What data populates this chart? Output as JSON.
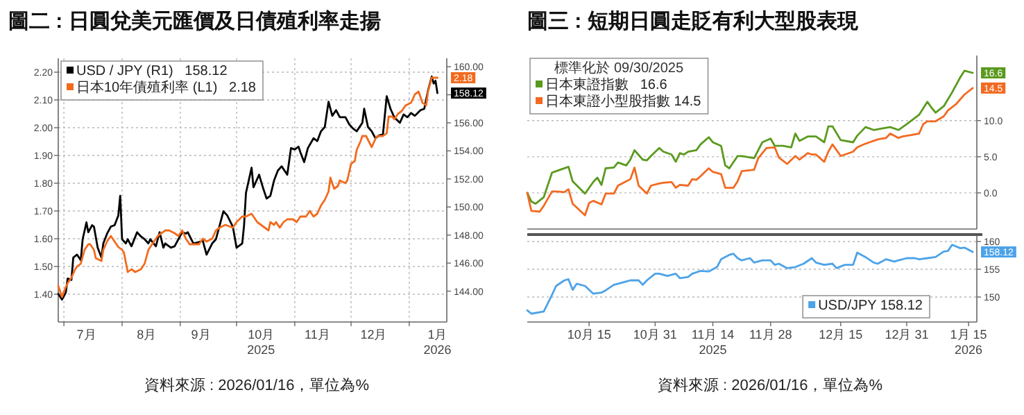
{
  "chart_data": [
    {
      "type": "line",
      "title": "圖二 : 日圓兌美元匯價及日債殖利率走揚",
      "legend": "top left",
      "grid": true,
      "xlim": [
        "2025-06-28",
        "2026-01-21"
      ],
      "xticks": [
        {
          "value": "2025-07-01",
          "label": null
        },
        {
          "value": "2025-08-01",
          "label": null
        },
        {
          "value": "2025-09-01",
          "label": null
        },
        {
          "value": "2025-10-01",
          "label": null
        },
        {
          "value": "2025-11-01",
          "label": null
        },
        {
          "value": "2025-12-01",
          "label": null
        },
        {
          "value": "2026-01-01",
          "label": null
        },
        {
          "value": "2025-07-13",
          "label": "7月"
        },
        {
          "value": "2025-08-14",
          "label": "8月"
        },
        {
          "value": "2025-09-12",
          "label": "9月"
        },
        {
          "value": "2025-10-14",
          "label": "10月\n2025"
        },
        {
          "value": "2025-11-13",
          "label": "11月"
        },
        {
          "value": "2025-12-13",
          "label": "12月"
        },
        {
          "value": "2026-01-16",
          "label": "1月\n2026"
        }
      ],
      "ylim": [
        1.3,
        2.25
      ],
      "yticks": [
        {
          "value": 1.4,
          "label": "1.40"
        },
        {
          "value": 1.5,
          "label": "1.50"
        },
        {
          "value": 1.6,
          "label": "1.60"
        },
        {
          "value": 1.7,
          "label": "1.70"
        },
        {
          "value": 1.8,
          "label": "1.80"
        },
        {
          "value": 1.9,
          "label": "1.90"
        },
        {
          "value": 2.0,
          "label": "2.00"
        },
        {
          "value": 2.1,
          "label": "2.10"
        },
        {
          "value": 2.2,
          "label": "2.20"
        }
      ],
      "y2lim": [
        141.8,
        160.6
      ],
      "y2ticks": [
        {
          "value": 144,
          "label": "144.00"
        },
        {
          "value": 146,
          "label": "146.00"
        },
        {
          "value": 148,
          "label": "148.00"
        },
        {
          "value": 150,
          "label": "150.00"
        },
        {
          "value": 152,
          "label": "152.00"
        },
        {
          "value": 154,
          "label": "154.00"
        },
        {
          "value": 156,
          "label": "156.00"
        },
        {
          "value": 158,
          "label": null
        },
        {
          "value": 160,
          "label": "160.00"
        }
      ],
      "series": [
        {
          "name": "USD / JPY (R1)   158.12",
          "color": "#000000",
          "axis": "y2",
          "x": [
            "2025-06-28",
            "2025-06-30",
            "2025-07-02",
            "2025-07-03",
            "2025-07-05",
            "2025-07-06",
            "2025-07-08",
            "2025-07-10",
            "2025-07-11",
            "2025-07-13",
            "2025-07-14",
            "2025-07-16",
            "2025-07-17",
            "2025-07-19",
            "2025-07-21",
            "2025-07-22",
            "2025-07-24",
            "2025-07-26",
            "2025-07-28",
            "2025-07-30",
            "2025-07-31",
            "2025-08-01",
            "2025-08-03",
            "2025-08-04",
            "2025-08-06",
            "2025-08-09",
            "2025-08-11",
            "2025-08-13",
            "2025-08-15",
            "2025-08-16",
            "2025-08-19",
            "2025-08-21",
            "2025-08-23",
            "2025-08-24",
            "2025-08-27",
            "2025-08-29",
            "2025-08-31",
            "2025-09-02",
            "2025-09-04",
            "2025-09-05",
            "2025-09-08",
            "2025-09-11",
            "2025-09-13",
            "2025-09-15",
            "2025-09-18",
            "2025-09-20",
            "2025-09-22",
            "2025-09-24",
            "2025-09-26",
            "2025-09-29",
            "2025-10-01",
            "2025-10-04",
            "2025-10-05",
            "2025-10-06",
            "2025-10-09",
            "2025-10-10",
            "2025-10-13",
            "2025-10-15",
            "2025-10-17",
            "2025-10-19",
            "2025-10-21",
            "2025-10-23",
            "2025-10-25",
            "2025-10-28",
            "2025-10-30",
            "2025-11-01",
            "2025-11-03",
            "2025-11-04",
            "2025-11-06",
            "2025-11-08",
            "2025-11-11",
            "2025-11-13",
            "2025-11-15",
            "2025-11-17",
            "2025-11-19",
            "2025-11-21",
            "2025-11-23",
            "2025-11-25",
            "2025-11-28",
            "2025-11-30",
            "2025-12-02",
            "2025-12-04",
            "2025-12-07",
            "2025-12-08",
            "2025-12-10",
            "2025-12-12",
            "2025-12-14",
            "2025-12-16",
            "2025-12-18",
            "2025-12-20",
            "2025-12-22",
            "2025-12-24",
            "2025-12-27",
            "2025-12-29",
            "2025-12-31",
            "2026-01-02",
            "2026-01-04",
            "2026-01-07",
            "2026-01-09",
            "2026-01-11",
            "2026-01-13",
            "2026-01-14",
            "2026-01-15",
            "2026-01-16"
          ],
          "values": [
            143.8,
            143.4,
            143.9,
            144.9,
            144.8,
            146.4,
            146.6,
            146.2,
            147.7,
            148.9,
            148.2,
            148.7,
            148.6,
            147.1,
            146.4,
            147.4,
            148.1,
            148.6,
            148.7,
            149.4,
            150.8,
            147.7,
            147.4,
            147.7,
            147.2,
            148.2,
            147.9,
            147.7,
            147.4,
            147.7,
            147.2,
            148.2,
            147.1,
            147.4,
            147.1,
            147.2,
            147.7,
            148.2,
            148.1,
            148.2,
            147.4,
            147.5,
            147.6,
            146.6,
            147.4,
            147.7,
            148.7,
            149.7,
            149.4,
            148.6,
            147.1,
            147.4,
            148.7,
            151.0,
            152.8,
            151.4,
            152.3,
            151.4,
            150.6,
            150.8,
            151.9,
            152.6,
            152.9,
            152.3,
            154.2,
            154.1,
            154.3,
            153.9,
            153.2,
            154.2,
            154.9,
            154.7,
            155.4,
            155.7,
            157.5,
            156.5,
            156.9,
            156.4,
            156.4,
            155.9,
            155.6,
            155.4,
            156.0,
            157.0,
            155.7,
            155.4,
            154.9,
            155.1,
            155.2,
            157.9,
            157.0,
            156.4,
            156.0,
            156.6,
            156.4,
            156.7,
            156.5,
            156.9,
            157.0,
            158.3,
            159.3,
            158.8,
            159.0,
            158.12
          ],
          "value_labels": [
            null,
            null,
            null,
            null,
            null,
            null,
            null,
            null,
            null,
            null,
            null,
            null,
            null,
            null,
            null,
            null,
            null,
            null,
            null,
            null,
            null,
            null,
            null,
            null,
            null,
            null,
            null,
            null,
            null,
            null,
            null,
            null,
            null,
            null,
            null,
            null,
            null,
            null,
            null,
            null,
            null,
            null,
            null,
            null,
            null,
            null,
            null,
            null,
            null,
            null,
            null,
            null,
            null,
            null,
            null,
            null,
            null,
            null,
            null,
            null,
            null,
            null,
            null,
            null,
            null,
            null,
            null,
            null,
            null,
            null,
            null,
            null,
            null,
            null,
            null,
            null,
            null,
            null,
            null,
            null,
            null,
            null,
            null,
            null,
            null,
            null,
            null,
            null,
            null,
            null,
            null,
            null,
            null,
            null,
            null,
            null,
            null,
            null,
            null,
            null,
            null,
            null,
            null,
            "158.12"
          ]
        },
        {
          "name": "日本10年債殖利率 (L1)   2.18",
          "color": "#f26b1d",
          "x": [
            "2025-06-28",
            "2025-06-30",
            "2025-07-01",
            "2025-07-03",
            "2025-07-05",
            "2025-07-07",
            "2025-07-08",
            "2025-07-10",
            "2025-07-12",
            "2025-07-14",
            "2025-07-15",
            "2025-07-17",
            "2025-07-18",
            "2025-07-21",
            "2025-07-22",
            "2025-07-24",
            "2025-07-26",
            "2025-07-28",
            "2025-07-30",
            "2025-08-01",
            "2025-08-02",
            "2025-08-04",
            "2025-08-06",
            "2025-08-08",
            "2025-08-11",
            "2025-08-13",
            "2025-08-15",
            "2025-08-17",
            "2025-08-20",
            "2025-08-22",
            "2025-08-24",
            "2025-08-26",
            "2025-08-29",
            "2025-08-31",
            "2025-09-02",
            "2025-09-04",
            "2025-09-06",
            "2025-09-09",
            "2025-09-11",
            "2025-09-13",
            "2025-09-15",
            "2025-09-18",
            "2025-09-20",
            "2025-09-22",
            "2025-09-25",
            "2025-09-29",
            "2025-10-01",
            "2025-10-04",
            "2025-10-06",
            "2025-10-09",
            "2025-10-10",
            "2025-10-12",
            "2025-10-14",
            "2025-10-18",
            "2025-10-19",
            "2025-10-21",
            "2025-10-22",
            "2025-10-24",
            "2025-10-26",
            "2025-10-28",
            "2025-10-31",
            "2025-11-02",
            "2025-11-04",
            "2025-11-07",
            "2025-11-09",
            "2025-11-11",
            "2025-11-13",
            "2025-11-15",
            "2025-11-17",
            "2025-11-19",
            "2025-11-20",
            "2025-11-22",
            "2025-11-24",
            "2025-11-25",
            "2025-11-28",
            "2025-11-29",
            "2025-12-01",
            "2025-12-03",
            "2025-12-04",
            "2025-12-06",
            "2025-12-07",
            "2025-12-09",
            "2025-12-12",
            "2025-12-14",
            "2025-12-15",
            "2025-12-18",
            "2025-12-20",
            "2025-12-21",
            "2025-12-23",
            "2025-12-24",
            "2025-12-26",
            "2025-12-28",
            "2025-12-30",
            "2026-01-02",
            "2026-01-04",
            "2026-01-06",
            "2026-01-08",
            "2026-01-10",
            "2026-01-11",
            "2026-01-13",
            "2026-01-14",
            "2026-01-15",
            "2026-01-16"
          ],
          "values": [
            1.43,
            1.39,
            1.41,
            1.44,
            1.46,
            1.49,
            1.5,
            1.51,
            1.56,
            1.58,
            1.58,
            1.56,
            1.53,
            1.52,
            1.56,
            1.59,
            1.61,
            1.59,
            1.57,
            1.56,
            1.55,
            1.48,
            1.49,
            1.48,
            1.49,
            1.51,
            1.56,
            1.58,
            1.61,
            1.62,
            1.63,
            1.63,
            1.62,
            1.61,
            1.63,
            1.6,
            1.58,
            1.58,
            1.58,
            1.6,
            1.59,
            1.6,
            1.63,
            1.64,
            1.65,
            1.64,
            1.66,
            1.68,
            1.68,
            1.69,
            1.68,
            1.66,
            1.65,
            1.63,
            1.66,
            1.65,
            1.66,
            1.64,
            1.66,
            1.67,
            1.67,
            1.66,
            1.68,
            1.68,
            1.7,
            1.68,
            1.69,
            1.72,
            1.74,
            1.77,
            1.82,
            1.78,
            1.79,
            1.81,
            1.8,
            1.81,
            1.87,
            1.88,
            1.92,
            1.95,
            1.97,
            1.97,
            1.93,
            1.96,
            1.97,
            1.97,
            1.98,
            2.04,
            2.04,
            2.03,
            2.05,
            2.06,
            2.08,
            2.09,
            2.12,
            2.13,
            2.09,
            2.08,
            2.13,
            2.18,
            2.18,
            2.18,
            2.18
          ],
          "value_labels": [
            null,
            null,
            null,
            null,
            null,
            null,
            null,
            null,
            null,
            null,
            null,
            null,
            null,
            null,
            null,
            null,
            null,
            null,
            null,
            null,
            null,
            null,
            null,
            null,
            null,
            null,
            null,
            null,
            null,
            null,
            null,
            null,
            null,
            null,
            null,
            null,
            null,
            null,
            null,
            null,
            null,
            null,
            null,
            null,
            null,
            null,
            null,
            null,
            null,
            null,
            null,
            null,
            null,
            null,
            null,
            null,
            null,
            null,
            null,
            null,
            null,
            null,
            null,
            null,
            null,
            null,
            null,
            null,
            null,
            null,
            null,
            null,
            null,
            null,
            null,
            null,
            null,
            null,
            null,
            null,
            null,
            null,
            null,
            null,
            null,
            null,
            null,
            null,
            null,
            null,
            null,
            null,
            null,
            null,
            null,
            null,
            null,
            null,
            null,
            null,
            null,
            null,
            "2.18"
          ]
        }
      ],
      "annotations": [
        "資料來源 : 2026/01/16，單位為%"
      ]
    },
    {
      "type": "line",
      "title": "圖三 : 短期日圓走貶有利大型股表現",
      "legend": "top left",
      "legend_title": "標準化於 09/30/2025",
      "grid": "y",
      "tick_labels": "y",
      "xlim": [
        "2025-09-30",
        "2026-01-17"
      ],
      "ylim": [
        -5,
        19
      ],
      "yticks": [
        {
          "value": 0,
          "label": "0.0"
        },
        {
          "value": 5,
          "label": "5.0"
        },
        {
          "value": 10,
          "label": "10.0"
        }
      ],
      "series": [
        {
          "name": "日本東證指數   16.6",
          "color": "#5a9a1e",
          "x": [
            "2025-09-30",
            "2025-10-01",
            "2025-10-02",
            "2025-10-04",
            "2025-10-06",
            "2025-10-07",
            "2025-10-10",
            "2025-10-11",
            "2025-10-14",
            "2025-10-16",
            "2025-10-17",
            "2025-10-18",
            "2025-10-19",
            "2025-10-21",
            "2025-10-22",
            "2025-10-24",
            "2025-10-25",
            "2025-10-26",
            "2025-10-28",
            "2025-10-29",
            "2025-10-30",
            "2025-11-01",
            "2025-11-02",
            "2025-11-04",
            "2025-11-05",
            "2025-11-06",
            "2025-11-07",
            "2025-11-08",
            "2025-11-10",
            "2025-11-11",
            "2025-11-13",
            "2025-11-14",
            "2025-11-16",
            "2025-11-17",
            "2025-11-18",
            "2025-11-20",
            "2025-11-21",
            "2025-11-24",
            "2025-11-26",
            "2025-11-28",
            "2025-11-29",
            "2025-12-01",
            "2025-12-03",
            "2025-12-04",
            "2025-12-05",
            "2025-12-07",
            "2025-12-09",
            "2025-12-11",
            "2025-12-12",
            "2025-12-13",
            "2025-12-15",
            "2025-12-18",
            "2025-12-19",
            "2025-12-21",
            "2025-12-23",
            "2025-12-25",
            "2025-12-27",
            "2025-12-29",
            "2025-12-31",
            "2026-01-03",
            "2026-01-05",
            "2026-01-06",
            "2026-01-07",
            "2026-01-09",
            "2026-01-11",
            "2026-01-13",
            "2026-01-14",
            "2026-01-16"
          ],
          "values": [
            0.0,
            -1.2,
            -1.5,
            -0.6,
            2.8,
            3.0,
            3.6,
            1.6,
            -0.1,
            1.5,
            2.1,
            1.1,
            3.4,
            3.5,
            4.2,
            3.8,
            4.6,
            5.9,
            4.6,
            4.5,
            5.1,
            6.2,
            5.7,
            5.3,
            4.3,
            5.5,
            5.3,
            5.7,
            5.9,
            6.7,
            7.7,
            7.0,
            6.5,
            3.8,
            3.4,
            5.1,
            5.1,
            4.8,
            7.0,
            7.5,
            6.5,
            6.5,
            6.3,
            8.2,
            7.2,
            7.8,
            7.8,
            7.0,
            9.2,
            9.2,
            7.3,
            7.0,
            7.9,
            9.1,
            8.7,
            8.9,
            9.1,
            8.7,
            9.5,
            10.8,
            12.6,
            11.8,
            11.1,
            12.0,
            13.9,
            16.0,
            16.9,
            16.6
          ],
          "value_labels": [
            null,
            null,
            null,
            null,
            null,
            null,
            null,
            null,
            null,
            null,
            null,
            null,
            null,
            null,
            null,
            null,
            null,
            null,
            null,
            null,
            null,
            null,
            null,
            null,
            null,
            null,
            null,
            null,
            null,
            null,
            null,
            null,
            null,
            null,
            null,
            null,
            null,
            null,
            null,
            null,
            null,
            null,
            null,
            null,
            null,
            null,
            null,
            null,
            null,
            null,
            null,
            null,
            null,
            null,
            null,
            null,
            null,
            null,
            null,
            null,
            null,
            null,
            null,
            null,
            null,
            null,
            null,
            "16.6"
          ]
        },
        {
          "name": "日本東證小型股指數 14.5",
          "color": "#f26a21",
          "x": [
            "2025-09-30",
            "2025-10-01",
            "2025-10-03",
            "2025-10-04",
            "2025-10-06",
            "2025-10-07",
            "2025-10-09",
            "2025-10-10",
            "2025-10-11",
            "2025-10-14",
            "2025-10-15",
            "2025-10-16",
            "2025-10-18",
            "2025-10-19",
            "2025-10-21",
            "2025-10-22",
            "2025-10-24",
            "2025-10-25",
            "2025-10-26",
            "2025-10-27",
            "2025-10-29",
            "2025-10-30",
            "2025-11-01",
            "2025-11-02",
            "2025-11-04",
            "2025-11-05",
            "2025-11-06",
            "2025-11-08",
            "2025-11-09",
            "2025-11-10",
            "2025-11-11",
            "2025-11-13",
            "2025-11-14",
            "2025-11-16",
            "2025-11-17",
            "2025-11-19",
            "2025-11-20",
            "2025-11-21",
            "2025-11-24",
            "2025-11-25",
            "2025-11-27",
            "2025-11-29",
            "2025-11-30",
            "2025-12-02",
            "2025-12-04",
            "2025-12-05",
            "2025-12-07",
            "2025-12-08",
            "2025-12-09",
            "2025-12-11",
            "2025-12-12",
            "2025-12-13",
            "2025-12-15",
            "2025-12-16",
            "2025-12-18",
            "2025-12-19",
            "2025-12-21",
            "2025-12-22",
            "2025-12-24",
            "2025-12-26",
            "2025-12-27",
            "2025-12-29",
            "2025-12-30",
            "2026-01-01",
            "2026-01-03",
            "2026-01-04",
            "2026-01-05",
            "2026-01-07",
            "2026-01-09",
            "2026-01-10",
            "2026-01-12",
            "2026-01-14",
            "2026-01-16"
          ],
          "values": [
            0.0,
            -2.5,
            -2.6,
            -1.8,
            0.2,
            0.2,
            0.1,
            0.5,
            -1.5,
            -3.1,
            -1.4,
            -1.1,
            -1.6,
            -0.1,
            -0.1,
            1.0,
            1.6,
            1.9,
            3.5,
            1.0,
            -0.1,
            1.0,
            1.3,
            1.4,
            1.5,
            0.7,
            1.1,
            1.0,
            1.9,
            1.8,
            2.3,
            3.4,
            2.9,
            2.6,
            0.7,
            0.7,
            1.6,
            3.0,
            3.2,
            4.8,
            6.2,
            6.3,
            4.9,
            4.0,
            5.1,
            4.6,
            5.5,
            5.3,
            5.3,
            4.3,
            5.7,
            6.7,
            5.1,
            5.3,
            5.7,
            6.3,
            6.8,
            7.0,
            7.4,
            7.6,
            8.2,
            7.6,
            7.8,
            8.0,
            8.2,
            9.5,
            9.9,
            9.9,
            10.6,
            11.4,
            12.3,
            13.6,
            14.5
          ],
          "value_labels": [
            null,
            null,
            null,
            null,
            null,
            null,
            null,
            null,
            null,
            null,
            null,
            null,
            null,
            null,
            null,
            null,
            null,
            null,
            null,
            null,
            null,
            null,
            null,
            null,
            null,
            null,
            null,
            null,
            null,
            null,
            null,
            null,
            null,
            null,
            null,
            null,
            null,
            null,
            null,
            null,
            null,
            null,
            null,
            null,
            null,
            null,
            null,
            null,
            null,
            null,
            null,
            null,
            null,
            null,
            null,
            null,
            null,
            null,
            null,
            null,
            null,
            null,
            null,
            null,
            null,
            null,
            null,
            null,
            null,
            null,
            null,
            null,
            "14.5"
          ]
        }
      ]
    },
    {
      "type": "line",
      "legend": "bottom right",
      "grid": "y",
      "xlim": [
        "2025-09-30",
        "2026-01-17"
      ],
      "xticks": [
        {
          "value": "2025-10-15",
          "label": "10月 15"
        },
        {
          "value": "2025-10-31",
          "label": "10月 31"
        },
        {
          "value": "2025-11-14",
          "label": "11月 14\n2025"
        },
        {
          "value": "2025-11-28",
          "label": "11月 28"
        },
        {
          "value": "2025-12-15",
          "label": "12月 15"
        },
        {
          "value": "2025-12-31",
          "label": "12月 31"
        },
        {
          "value": "2026-01-15",
          "label": "1月 15\n2026"
        }
      ],
      "ylim": [
        145.5,
        161
      ],
      "yticks": [
        150,
        155,
        160
      ],
      "series": [
        {
          "name": "USD/JPY 158.12",
          "color": "#4da3e8",
          "x": [
            "2025-09-30",
            "2025-10-01",
            "2025-10-04",
            "2025-10-06",
            "2025-10-07",
            "2025-10-09",
            "2025-10-10",
            "2025-10-11",
            "2025-10-12",
            "2025-10-14",
            "2025-10-16",
            "2025-10-18",
            "2025-10-19",
            "2025-10-21",
            "2025-10-22",
            "2025-10-24",
            "2025-10-25",
            "2025-10-27",
            "2025-10-28",
            "2025-10-29",
            "2025-10-31",
            "2025-11-01",
            "2025-11-03",
            "2025-11-05",
            "2025-11-06",
            "2025-11-08",
            "2025-11-09",
            "2025-11-11",
            "2025-11-13",
            "2025-11-15",
            "2025-11-16",
            "2025-11-18",
            "2025-11-19",
            "2025-11-20",
            "2025-11-21",
            "2025-11-23",
            "2025-11-24",
            "2025-11-26",
            "2025-11-28",
            "2025-11-29",
            "2025-11-30",
            "2025-12-02",
            "2025-12-04",
            "2025-12-06",
            "2025-12-08",
            "2025-12-09",
            "2025-12-11",
            "2025-12-13",
            "2025-12-14",
            "2025-12-16",
            "2025-12-18",
            "2025-12-19",
            "2025-12-21",
            "2025-12-23",
            "2025-12-24",
            "2025-12-26",
            "2025-12-28",
            "2025-12-29",
            "2025-12-31",
            "2026-01-02",
            "2026-01-03",
            "2026-01-05",
            "2026-01-07",
            "2026-01-09",
            "2026-01-10",
            "2026-01-11",
            "2026-01-13",
            "2026-01-14",
            "2026-01-16"
          ],
          "values": [
            147.6,
            147.0,
            147.4,
            150.4,
            152.0,
            153.0,
            153.2,
            151.3,
            152.4,
            152.0,
            150.6,
            150.8,
            151.2,
            152.2,
            152.4,
            152.8,
            153.0,
            153.0,
            152.2,
            153.0,
            154.2,
            154.2,
            153.8,
            154.2,
            153.4,
            153.6,
            154.2,
            154.7,
            154.6,
            155.4,
            156.8,
            157.6,
            157.8,
            157.0,
            156.6,
            157.0,
            156.2,
            156.6,
            156.6,
            155.8,
            156.0,
            155.2,
            155.4,
            156.0,
            157.0,
            156.2,
            155.8,
            156.0,
            155.2,
            155.8,
            155.8,
            158.0,
            157.2,
            156.2,
            156.0,
            156.8,
            156.4,
            156.6,
            157.0,
            157.0,
            156.8,
            157.0,
            157.2,
            158.2,
            158.3,
            159.4,
            158.8,
            158.9,
            158.12
          ],
          "value_labels": [
            null,
            null,
            null,
            null,
            null,
            null,
            null,
            null,
            null,
            null,
            null,
            null,
            null,
            null,
            null,
            null,
            null,
            null,
            null,
            null,
            null,
            null,
            null,
            null,
            null,
            null,
            null,
            null,
            null,
            null,
            null,
            null,
            null,
            null,
            null,
            null,
            null,
            null,
            null,
            null,
            null,
            null,
            null,
            null,
            null,
            null,
            null,
            null,
            null,
            null,
            null,
            null,
            null,
            null,
            null,
            null,
            null,
            null,
            null,
            null,
            null,
            null,
            null,
            null,
            null,
            null,
            null,
            null,
            "158.12"
          ]
        }
      ],
      "annotations": [
        "資料來源 : 2026/01/16，單位為%"
      ]
    }
  ]
}
